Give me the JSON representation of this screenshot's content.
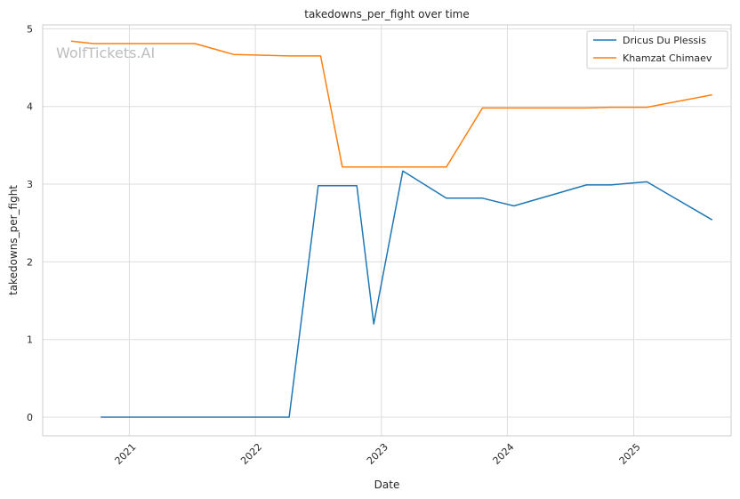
{
  "watermark": "WolfTickets.AI",
  "chart_data": {
    "type": "line",
    "title": "takedowns_per_fight over time",
    "xlabel": "Date",
    "ylabel": "takedowns_per_fight",
    "x_ticks": [
      "2021",
      "2022",
      "2023",
      "2024",
      "2025"
    ],
    "y_ticks": [
      0,
      1,
      2,
      3,
      4,
      5
    ],
    "xlim": [
      "2020-04-25",
      "2025-10-10"
    ],
    "ylim": [
      -0.24,
      5.05
    ],
    "grid": true,
    "legend": "top-right",
    "series": [
      {
        "name": "Dricus Du Plessis",
        "color": "#1f77b4",
        "points": [
          [
            "2020-10-10",
            0
          ],
          [
            "2021-04-01",
            0
          ],
          [
            "2021-10-01",
            0
          ],
          [
            "2022-04-09",
            0
          ],
          [
            "2022-07-02",
            2.98
          ],
          [
            "2022-10-22",
            2.98
          ],
          [
            "2022-12-10",
            1.2
          ],
          [
            "2023-03-04",
            3.17
          ],
          [
            "2023-07-08",
            2.82
          ],
          [
            "2023-10-21",
            2.82
          ],
          [
            "2024-01-20",
            2.72
          ],
          [
            "2024-08-17",
            2.99
          ],
          [
            "2024-10-26",
            2.99
          ],
          [
            "2025-02-08",
            3.03
          ],
          [
            "2025-08-16",
            2.54
          ]
        ]
      },
      {
        "name": "Khamzat Chimaev",
        "color": "#ff7f0e",
        "points": [
          [
            "2020-07-16",
            4.84
          ],
          [
            "2020-09-19",
            4.81
          ],
          [
            "2021-07-10",
            4.81
          ],
          [
            "2021-10-30",
            4.67
          ],
          [
            "2022-04-09",
            4.65
          ],
          [
            "2022-07-09",
            4.65
          ],
          [
            "2022-09-10",
            3.22
          ],
          [
            "2023-07-08",
            3.22
          ],
          [
            "2023-10-21",
            3.98
          ],
          [
            "2024-08-17",
            3.98
          ],
          [
            "2024-10-26",
            3.99
          ],
          [
            "2025-02-08",
            3.99
          ],
          [
            "2025-08-16",
            4.15
          ]
        ]
      }
    ]
  }
}
